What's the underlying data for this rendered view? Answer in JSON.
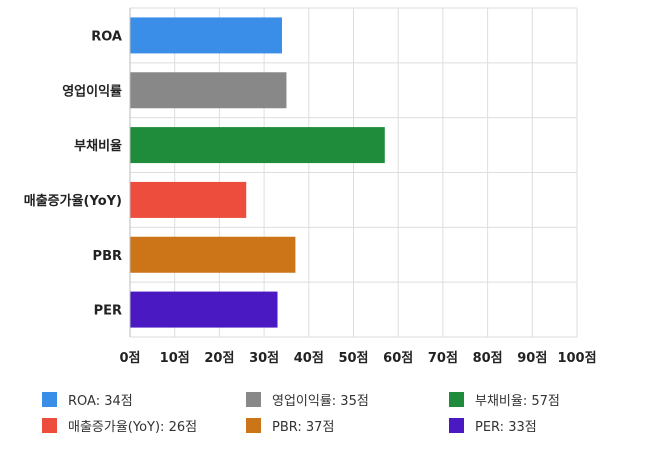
{
  "chart_data": {
    "type": "bar",
    "orientation": "horizontal",
    "categories": [
      "ROA",
      "영업이익률",
      "부채비율",
      "매출증가율(YoY)",
      "PBR",
      "PER"
    ],
    "values": [
      34,
      35,
      57,
      26,
      37,
      33
    ],
    "colors": [
      "#3b8ee8",
      "#888888",
      "#1e8c3a",
      "#ec4d3c",
      "#cc7418",
      "#4a19c2"
    ],
    "xlim": [
      0,
      100
    ],
    "x_ticks": [
      0,
      10,
      20,
      30,
      40,
      50,
      60,
      70,
      80,
      90,
      100
    ],
    "tick_suffix": "점",
    "grid": true,
    "legend_position": "bottom",
    "legend": [
      {
        "label": "ROA: 34점",
        "color": "#3b8ee8"
      },
      {
        "label": "영업이익률: 35점",
        "color": "#888888"
      },
      {
        "label": "부채비율: 57점",
        "color": "#1e8c3a"
      },
      {
        "label": "매출증가율(YoY): 26점",
        "color": "#ec4d3c"
      },
      {
        "label": "PBR: 37점",
        "color": "#cc7418"
      },
      {
        "label": "PER: 33점",
        "color": "#4a19c2"
      }
    ]
  }
}
